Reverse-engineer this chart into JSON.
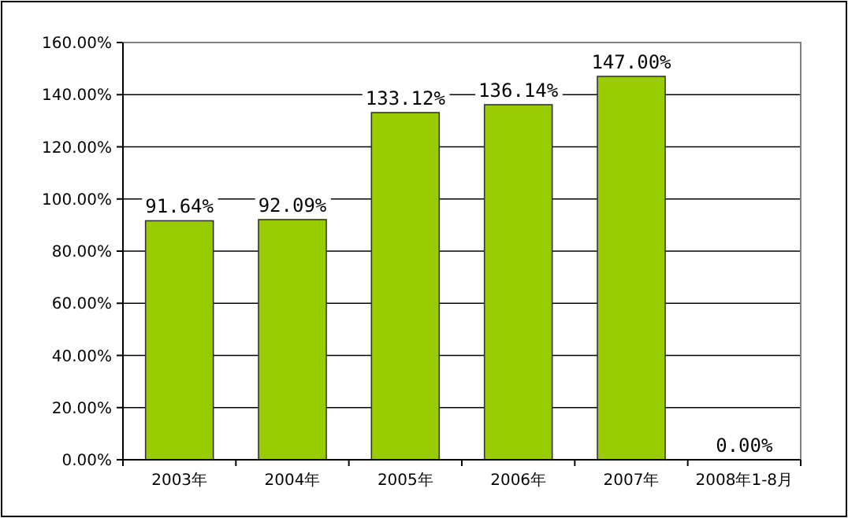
{
  "chart_data": {
    "type": "bar",
    "categories": [
      "2003年",
      "2004年",
      "2005年",
      "2006年",
      "2007年",
      "2008年1-8月"
    ],
    "values": [
      91.64,
      92.09,
      133.12,
      136.14,
      147.0,
      0.0
    ],
    "value_labels": [
      "91.64%",
      "92.09%",
      "133.12%",
      "136.14%",
      "147.00%",
      "0.00%"
    ],
    "color": "#99cc00",
    "ylim": [
      0,
      160
    ],
    "yticks": [
      {
        "value": 0,
        "label": "0.00%"
      },
      {
        "value": 20,
        "label": "20.00%"
      },
      {
        "value": 40,
        "label": "40.00%"
      },
      {
        "value": 60,
        "label": "60.00%"
      },
      {
        "value": 80,
        "label": "80.00%"
      },
      {
        "value": 100,
        "label": "100.00%"
      },
      {
        "value": 120,
        "label": "120.00%"
      },
      {
        "value": 140,
        "label": "140.00%"
      },
      {
        "value": 160,
        "label": "160.00%"
      }
    ],
    "grid": "y"
  }
}
